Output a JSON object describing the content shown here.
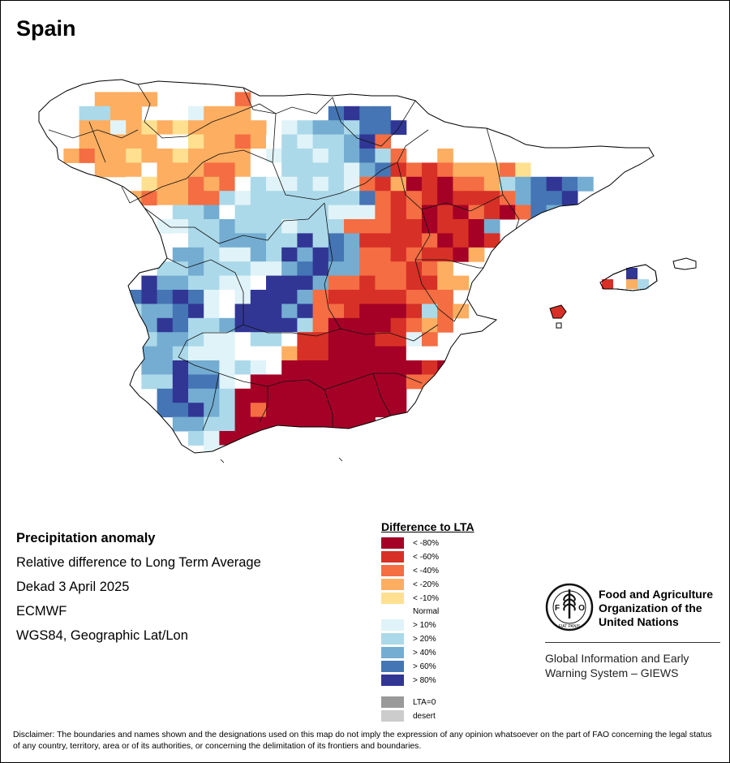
{
  "map": {
    "title": "Spain",
    "info": {
      "variable": "Precipitation anomaly",
      "description": "Relative difference to Long Term Average",
      "period": "Dekad 3 April 2025",
      "source": "ECMWF",
      "projection": "WGS84, Geographic Lat/Lon"
    },
    "legend": {
      "title": "Difference to LTA",
      "classes": [
        {
          "label": "< -80%",
          "color": "#a50026"
        },
        {
          "label": "< -60%",
          "color": "#d73027"
        },
        {
          "label": "< -40%",
          "color": "#f46d43"
        },
        {
          "label": "< -20%",
          "color": "#fdae61"
        },
        {
          "label": "< -10%",
          "color": "#fee090"
        },
        {
          "label": "Normal",
          "color": "#ffffff"
        },
        {
          "label": "> 10%",
          "color": "#e0f3f8"
        },
        {
          "label": "> 20%",
          "color": "#abd9e9"
        },
        {
          "label": "> 40%",
          "color": "#74add1"
        },
        {
          "label": "> 60%",
          "color": "#4575b4"
        },
        {
          "label": "> 80%",
          "color": "#313695"
        },
        {
          "label": "LTA=0",
          "color": "#999999"
        },
        {
          "label": "desert",
          "color": "#cccccc"
        }
      ]
    },
    "organization": {
      "name_line1": "Food and Agriculture",
      "name_line2": "Organization of the",
      "name_line3": "United Nations",
      "system_line1": "Global Information and Early",
      "system_line2": "Warning System – GIEWS",
      "logo_text": "FIAT PANIS"
    },
    "disclaimer": "Disclaimer: The boundaries and names shown and the designations used on this map do not imply the expression of any opinion whatsoever on the part of FAO concerning the legal status of any country, territory, area or of its authorities, or concerning the delimitation of its frontiers and boundaries.",
    "grid_anomaly": {
      "class_order": [
        "< -80%",
        "< -60%",
        "< -40%",
        "< -20%",
        "< -10%",
        "Normal",
        "> 10%",
        "> 20%",
        "> 40%",
        "> 60%",
        "> 80%"
      ],
      "rows": [
        "..........................................",
        "....3333.....2...........................",
        "...7733.556333.....9A99..................",
        "...336343433333.6788799A.................",
        "...333335543323576778A2..................",
        "..3233433433335677678972..3.......",
        "....333533322355777768912123332455.......",
        "......543323257667676213010223789A98.....",
        "......3233227677777779212101112899A.....",
        "........57785777777666212010210298......",
        "........6677877767772221101108.........",
        ".........57788877A798111120101..........",
        ".........8876687A8A9822121103..........",
        "........7787776689A88222123.............",
        ".......A8877665AAA8221221133............",
        "......9A9A9656AAA8211111222............",
        "......7889A65AAA8A2210001723...........",
        ".....788A9778AAAA7200001232............",
        "......77887665775110001162.............",
        "......78876665553110000055.............",
        ".......88A88676500000000010............",
        ".......77A9965000000000022.............",
        "........9A88700000000000...............",
        "........99A8702000000000...............",
        ".........8877000000000................",
        "..........7600000000000................",
        "...........6600.000...................",
        "...........5......................."
      ]
    }
  }
}
